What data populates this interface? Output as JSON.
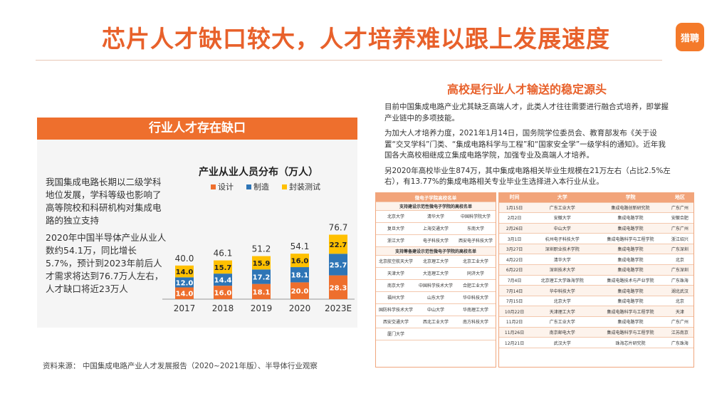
{
  "title": "芯片人才缺口较大，人才培养难以跟上发展速度",
  "logo": "猎聘",
  "left": {
    "banner": "行业人才存在缺口",
    "para1": "我国集成电路长期以二级学科地位发展，学科等级也影响了高等院校和科研机构对集成电路的独立支持",
    "para2": "2020年中国半导体产业从业人数约54.1万，同比增长5.7%，预计到2023年前后人才需求将达到76.7万人左右，人才缺口将近23万人"
  },
  "chart_data": {
    "type": "bar",
    "stacked": true,
    "title": "产业从业人员分布（万人）",
    "categories": [
      "2017",
      "2018",
      "2019",
      "2020",
      "2023E"
    ],
    "series": [
      {
        "name": "设计",
        "values": [
          14.0,
          16.0,
          18.1,
          20.0,
          28.3
        ],
        "labels": [
          "14.0",
          "16.0",
          "18.1",
          "20.0",
          "28.3"
        ],
        "color": "#ee6f2d"
      },
      {
        "name": "制造",
        "values": [
          12.0,
          14.4,
          17.2,
          18.1,
          25.7
        ],
        "labels": [
          "12.0",
          "14.4",
          "17.2",
          "18.1",
          "25.7"
        ],
        "color": "#2e75b6"
      },
      {
        "name": "封装测试",
        "values": [
          14.0,
          15.7,
          15.9,
          16.0,
          22.7
        ],
        "labels": [
          "14.0",
          "15.7",
          "15.9",
          "16.0",
          "22.7"
        ],
        "color": "#ffc000"
      }
    ],
    "totals": [
      "40.0",
      "46.1",
      "51.2",
      "54.1",
      "76.7"
    ],
    "legend_position": "top",
    "ylim": [
      0,
      80
    ]
  },
  "source": "资料来源：  中国集成电路产业人才发展报告（2020~2021年版）、半导体行业观察",
  "right": {
    "title": "高校是行业人才输送的稳定源头",
    "para1": "目前中国集成电路产业尤其缺乏高端人才，此类人才往往需要进行融合式培养，即掌握产业链中的多项技能。",
    "para2": "为加大人才培养力度，2021年1月14日，国务院学位委员会、教育部发布《关于设置“交叉学科”门类、“集成电路科学与工程”和“国家安全学”一级学科的通知》。近年我国各大高校相继成立集成电路学院，加强专业及高端人才培养。",
    "para3": "另2020年高校毕业生874万，其中集成电路相关毕业生规模在21万左右（占比2.5%左右），有13.77%的集成电路相关专业毕业生选择进入本行业从业。"
  },
  "tableA": {
    "header": "微电子学院高校名单",
    "sub1": "支持建设示范性微电子学院的高校名单",
    "group1": [
      [
        "北京大学",
        "清华大学",
        "中国科学院大学"
      ],
      [
        "复旦大学",
        "上海交通大学",
        "东南大学"
      ],
      [
        "浙江大学",
        "电子科技大学",
        "西安电子科技大学"
      ]
    ],
    "sub2": "支持筹备建设示范性微电子学院的高校名单",
    "group2": [
      [
        "北京航空航天大学",
        "北京理工大学",
        "北京工业大学"
      ],
      [
        "天津大学",
        "大连理工大学",
        "同济大学"
      ],
      [
        "南京大学",
        "中国科学技术大学",
        "合肥工业大学"
      ],
      [
        "福州大学",
        "山东大学",
        "华中科技大学"
      ],
      [
        "国防科学技术大学",
        "中山大学",
        "华南理工大学"
      ],
      [
        "西安交通大学",
        "西北工业大学",
        "南方科技大学"
      ],
      [
        "厦门大学",
        "",
        ""
      ]
    ]
  },
  "tableB": {
    "headers": [
      "时间",
      "大学",
      "学院",
      "地区"
    ],
    "rows": [
      [
        "1月15日",
        "广东工业大学",
        "集成电路创新研究院",
        "广东广州"
      ],
      [
        "2月2日",
        "安徽大学",
        "集成电路学院",
        "安徽合肥"
      ],
      [
        "2月26日",
        "中山大学",
        "集成电路学院",
        "广东广州"
      ],
      [
        "3月1日",
        "杭州电子科技大学",
        "集成电路科学与工程学院",
        "浙江绍兴"
      ],
      [
        "3月27日",
        "深圳职业技术学院",
        "集成电路学院",
        "广东深圳"
      ],
      [
        "4月22日",
        "清华大学",
        "集成电路学院",
        "北京"
      ],
      [
        "6月22日",
        "深圳技术大学",
        "集成电路学院",
        "广东深圳"
      ],
      [
        "7月4日",
        "北京理工大学珠海学院",
        "集成电路技术与产业学院",
        "广东珠海"
      ],
      [
        "7月14日",
        "华中科技大学",
        "集成电路学院",
        "湖北武汉"
      ],
      [
        "7月15日",
        "北京大学",
        "集成电路学院",
        "北京"
      ],
      [
        "10月22日",
        "天津理工大学",
        "集成电路科学与工程学院",
        "天津"
      ],
      [
        "11月2日",
        "广东工业大学",
        "集成电路学院",
        "广东广州"
      ],
      [
        "11月26日",
        "南京邮电大学",
        "集成电路科学与工程学院",
        "江苏南京"
      ],
      [
        "12月21日",
        "武汉大学",
        "珠海芯片研究院",
        "广东珠海"
      ]
    ]
  }
}
